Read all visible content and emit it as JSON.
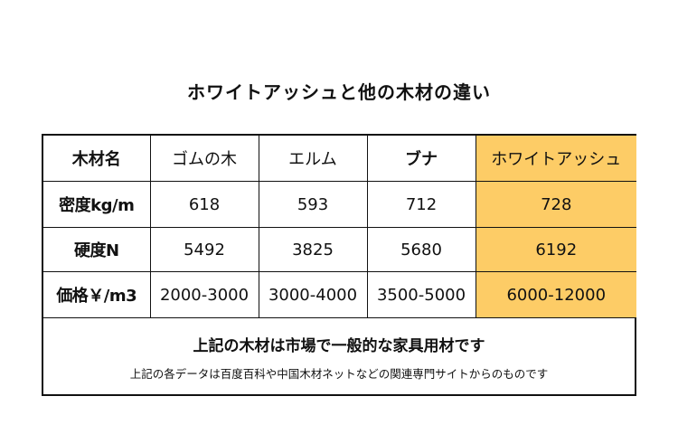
{
  "title": "ホワイトアッシュと他の木材の違い",
  "table": {
    "header": {
      "label": "木材名",
      "woods": [
        "ゴムの木",
        "エルム",
        "ブナ",
        "ホワイトアッシュ"
      ]
    },
    "rows": [
      {
        "label": "密度kg/m",
        "values": [
          "618",
          "593",
          "712",
          "728"
        ]
      },
      {
        "label": "硬度N",
        "values": [
          "5492",
          "3825",
          "5680",
          "6192"
        ]
      },
      {
        "label": "価格￥/m3",
        "values": [
          "2000-3000",
          "3000-4000",
          "3500-5000",
          "6000-12000"
        ]
      }
    ]
  },
  "footer": {
    "main": "上記の木材は市場で一般的な家具用材です",
    "sub": "上記の各データは百度百科や中国木材ネットなどの関連専門サイトからのものです"
  },
  "colors": {
    "highlight": "#fdcc66",
    "border": "#111111"
  }
}
